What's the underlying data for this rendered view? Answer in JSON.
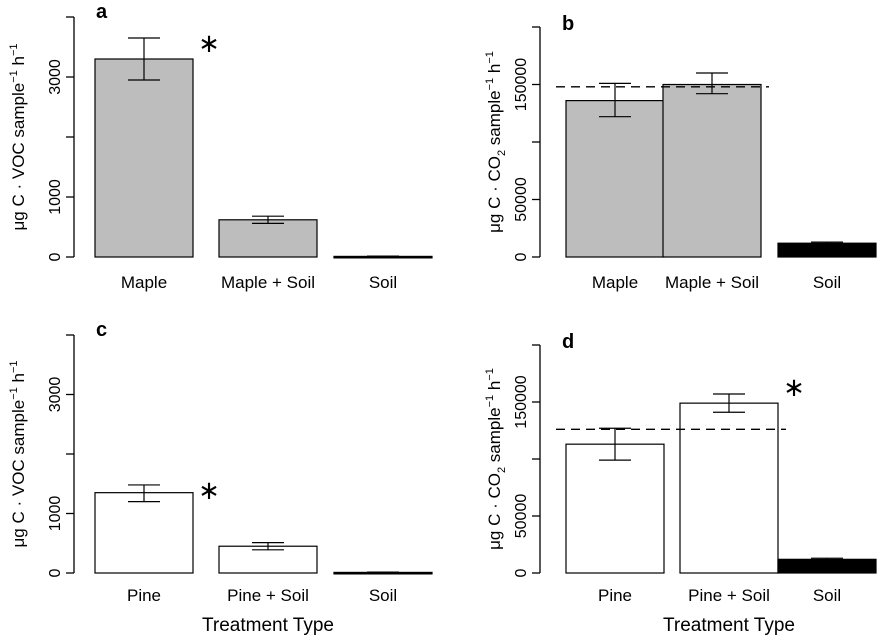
{
  "chart_data": [
    {
      "panel_label": "a",
      "type": "bar",
      "categories": [
        "Maple",
        "Maple + Soil",
        "Soil"
      ],
      "values": [
        3300,
        620,
        10
      ],
      "error_low": [
        2950,
        560,
        5
      ],
      "error_high": [
        3650,
        680,
        15
      ],
      "bar_colors": [
        "#bdbdbd",
        "#bdbdbd",
        "#000000"
      ],
      "ylim": [
        0,
        4000
      ],
      "yticks": [
        "0",
        "1000",
        "3000"
      ],
      "ytick_values": [
        0,
        1000,
        3000
      ],
      "ylabel_parts": [
        "μg C · VOC sample",
        "−1",
        " h",
        "−1"
      ],
      "significance_marker": "∗",
      "marker_bar": 0,
      "xlabel": ""
    },
    {
      "panel_label": "b",
      "type": "bar",
      "categories": [
        "Maple",
        "Maple + Soil",
        "Soil"
      ],
      "values": [
        136000,
        150000,
        12000
      ],
      "error_low": [
        122000,
        142000,
        11000
      ],
      "error_high": [
        151000,
        160000,
        13000
      ],
      "bar_colors": [
        "#bdbdbd",
        "#bdbdbd",
        "#000000"
      ],
      "ylim": [
        0,
        200000
      ],
      "yticks": [
        "0",
        "50000",
        "150000"
      ],
      "ytick_values": [
        0,
        50000,
        150000
      ],
      "ylabel_parts": [
        "μg C · CO",
        "2",
        " sample",
        "−1",
        " h",
        "−1"
      ],
      "reference_line": 148000,
      "xlabel": ""
    },
    {
      "panel_label": "c",
      "type": "bar",
      "categories": [
        "Pine",
        "Pine + Soil",
        "Soil"
      ],
      "values": [
        1350,
        450,
        10
      ],
      "error_low": [
        1200,
        390,
        5
      ],
      "error_high": [
        1480,
        510,
        15
      ],
      "bar_colors": [
        "#ffffff",
        "#ffffff",
        "#000000"
      ],
      "ylim": [
        0,
        4000
      ],
      "yticks": [
        "0",
        "1000",
        "3000"
      ],
      "ytick_values": [
        0,
        1000,
        3000
      ],
      "ylabel_parts": [
        "μg C · VOC sample",
        "−1",
        " h",
        "−1"
      ],
      "significance_marker": "∗",
      "marker_bar": 0,
      "xlabel": "Treatment Type"
    },
    {
      "panel_label": "d",
      "type": "bar",
      "categories": [
        "Pine",
        "Pine + Soil",
        "Soil"
      ],
      "values": [
        113000,
        149000,
        12000
      ],
      "error_low": [
        99000,
        141000,
        11000
      ],
      "error_high": [
        127000,
        157000,
        13000
      ],
      "bar_colors": [
        "#ffffff",
        "#ffffff",
        "#000000"
      ],
      "ylim": [
        0,
        200000
      ],
      "yticks": [
        "0",
        "50000",
        "150000"
      ],
      "ytick_values": [
        0,
        50000,
        150000
      ],
      "ylabel_parts": [
        "μg C · CO",
        "2",
        " sample",
        "−1",
        " h",
        "−1"
      ],
      "reference_line": 126000,
      "significance_marker": "∗",
      "marker_bar": 1,
      "xlabel": "Treatment Type"
    }
  ]
}
